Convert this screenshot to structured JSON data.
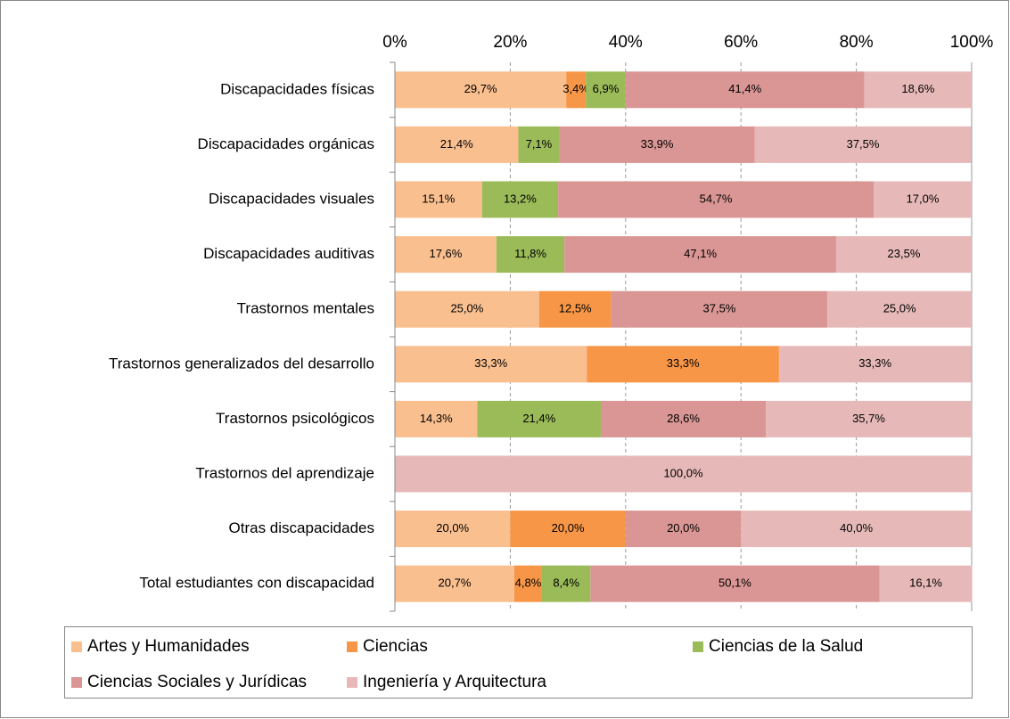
{
  "chart_data": {
    "type": "bar",
    "orientation": "horizontal",
    "stacked": true,
    "categories": [
      "Discapacidades físicas",
      "Discapacidades orgánicas",
      "Discapacidades visuales",
      "Discapacidades auditivas",
      "Trastornos mentales",
      "Trastornos generalizados del desarrollo",
      "Trastornos psicológicos",
      "Trastornos del aprendizaje",
      "Otras discapacidades",
      "Total estudiantes con discapacidad"
    ],
    "series": [
      {
        "name": "Artes y Humanidades",
        "color": "#F9BF8F",
        "values": [
          29.7,
          21.4,
          15.1,
          17.6,
          25.0,
          33.3,
          14.3,
          null,
          20.0,
          20.7
        ],
        "value_labels": [
          "29,7%",
          "21,4%",
          "15,1%",
          "17,6%",
          "25,0%",
          "33,3%",
          "14,3%",
          null,
          "20,0%",
          "20,7%"
        ]
      },
      {
        "name": "Ciencias",
        "color": "#F79646",
        "values": [
          3.4,
          null,
          null,
          null,
          12.5,
          33.3,
          null,
          null,
          20.0,
          4.8
        ],
        "value_labels": [
          "3,4%",
          null,
          null,
          null,
          "12,5%",
          "33,3%",
          null,
          null,
          "20,0%",
          "4,8%"
        ]
      },
      {
        "name": "Ciencias de la Salud",
        "color": "#9BBB59",
        "values": [
          6.9,
          7.1,
          13.2,
          11.8,
          null,
          null,
          21.4,
          null,
          null,
          8.4
        ],
        "value_labels": [
          "6,9%",
          "7,1%",
          "13,2%",
          "11,8%",
          null,
          null,
          "21,4%",
          null,
          null,
          "8,4%"
        ]
      },
      {
        "name": "Ciencias Sociales y Jurídicas",
        "color": "#D99694",
        "values": [
          41.4,
          33.9,
          54.7,
          47.1,
          37.5,
          null,
          28.6,
          null,
          20.0,
          50.1
        ],
        "value_labels": [
          "41,4%",
          "33,9%",
          "54,7%",
          "47,1%",
          "37,5%",
          null,
          "28,6%",
          null,
          "20,0%",
          "50,1%"
        ]
      },
      {
        "name": "Ingeniería y Arquitectura",
        "color": "#E6B9B8",
        "values": [
          18.6,
          37.5,
          17.0,
          23.5,
          25.0,
          33.3,
          35.7,
          100.0,
          40.0,
          16.1
        ],
        "value_labels": [
          "18,6%",
          "37,5%",
          "17,0%",
          "23,5%",
          "25,0%",
          "33,3%",
          "35,7%",
          "100,0%",
          "40,0%",
          "16,1%"
        ]
      }
    ],
    "xlim": [
      0,
      100
    ],
    "xticks": [
      {
        "value": 0,
        "label": "0%"
      },
      {
        "value": 20,
        "label": "20%"
      },
      {
        "value": 40,
        "label": "40%"
      },
      {
        "value": 60,
        "label": "60%"
      },
      {
        "value": 80,
        "label": "80%"
      },
      {
        "value": 100,
        "label": "100%"
      }
    ],
    "grid": true,
    "legend": "bottom"
  }
}
